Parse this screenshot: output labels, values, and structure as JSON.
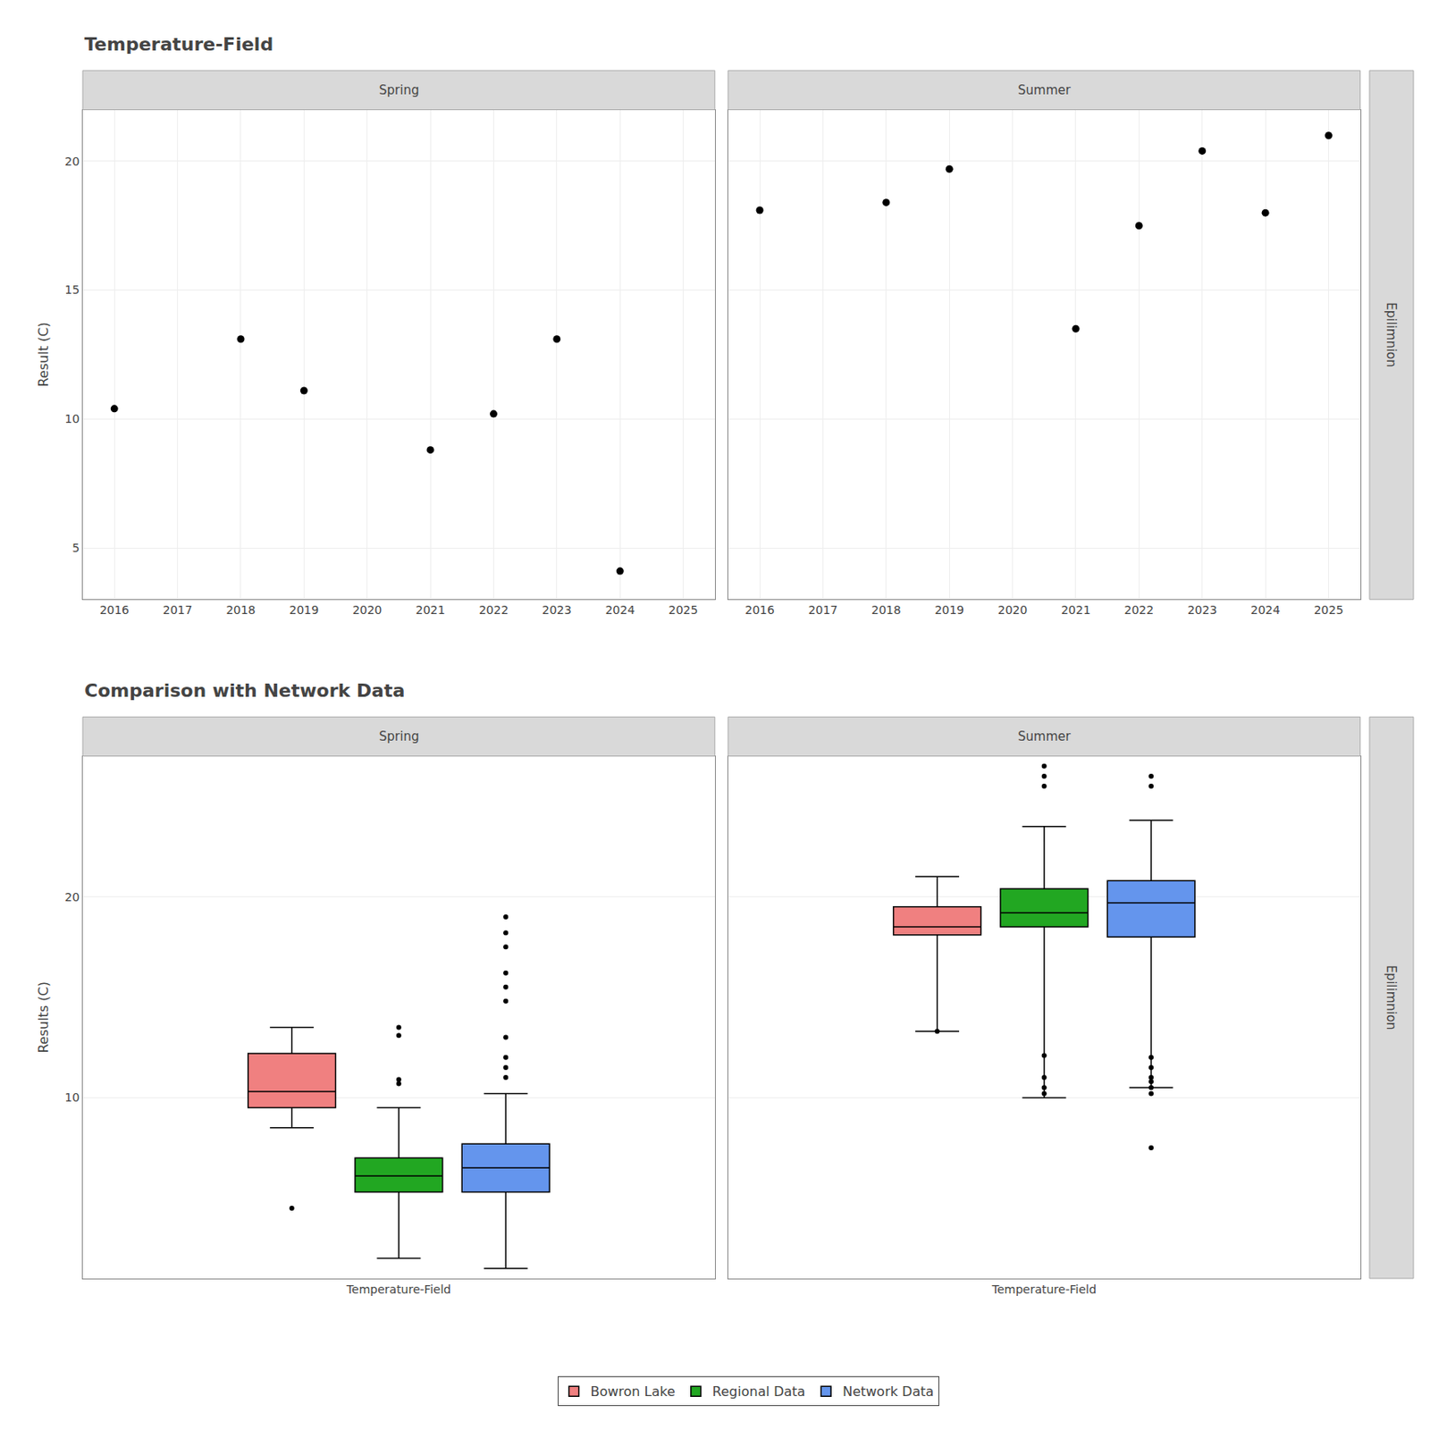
{
  "chart_data": [
    {
      "type": "scatter",
      "title": "Temperature-Field",
      "ylabel": "Result (C)",
      "annotations": [
        "Epilimnion"
      ],
      "color": "#000000",
      "panels": [
        {
          "name": "Spring",
          "x": [
            2016,
            2018,
            2019,
            2021,
            2022,
            2023,
            2024
          ],
          "values": [
            10.4,
            13.1,
            11.1,
            8.8,
            10.2,
            13.1,
            4.1
          ]
        },
        {
          "name": "Summer",
          "x": [
            2016,
            2018,
            2019,
            2021,
            2022,
            2023,
            2024,
            2025
          ],
          "values": [
            18.1,
            18.4,
            19.7,
            13.5,
            17.5,
            20.4,
            18.0,
            21.0
          ]
        }
      ],
      "xlim": [
        2015.5,
        2025.5
      ],
      "xticks": [
        2016,
        2017,
        2018,
        2019,
        2020,
        2021,
        2022,
        2023,
        2024,
        2025
      ],
      "ylim": [
        3.0,
        22.0
      ],
      "yticks": [
        5,
        10,
        15,
        20
      ],
      "grid": true
    },
    {
      "type": "box",
      "title": "Comparison with Network Data",
      "ylabel": "Results (C)",
      "categories": [
        "Temperature-Field"
      ],
      "annotations": [
        "Epilimnion"
      ],
      "color": "#000000",
      "panels": [
        {
          "name": "Spring",
          "series": [
            {
              "name": "Bowron Lake",
              "color": "#F08080",
              "q1": 9.5,
              "median": 10.3,
              "q3": 12.2,
              "whisker_low": 8.5,
              "whisker_high": 13.5,
              "outliers": [
                4.5
              ]
            },
            {
              "name": "Regional Data",
              "color": "#22A722",
              "q1": 5.3,
              "median": 6.1,
              "q3": 7.0,
              "whisker_low": 2.0,
              "whisker_high": 9.5,
              "outliers": [
                10.7,
                10.9,
                13.1,
                13.5
              ]
            },
            {
              "name": "Network Data",
              "color": "#6495ED",
              "q1": 5.3,
              "median": 6.5,
              "q3": 7.7,
              "whisker_low": 1.5,
              "whisker_high": 10.2,
              "outliers": [
                11.0,
                11.5,
                12.0,
                13.0,
                14.8,
                15.5,
                16.2,
                17.5,
                18.2,
                19.0
              ]
            }
          ]
        },
        {
          "name": "Summer",
          "series": [
            {
              "name": "Bowron Lake",
              "color": "#F08080",
              "q1": 18.1,
              "median": 18.5,
              "q3": 19.5,
              "whisker_low": 13.3,
              "whisker_high": 21.0,
              "outliers": [
                13.3
              ]
            },
            {
              "name": "Regional Data",
              "color": "#22A722",
              "q1": 18.5,
              "median": 19.2,
              "q3": 20.4,
              "whisker_low": 10.0,
              "whisker_high": 23.5,
              "outliers": [
                10.2,
                10.5,
                11.0,
                12.1,
                25.5,
                26.0,
                26.5
              ]
            },
            {
              "name": "Network Data",
              "color": "#6495ED",
              "q1": 18.0,
              "median": 19.7,
              "q3": 20.8,
              "whisker_low": 10.5,
              "whisker_high": 23.8,
              "outliers": [
                7.5,
                10.2,
                10.5,
                10.8,
                11.0,
                11.5,
                12.0,
                25.5,
                26.0
              ]
            }
          ]
        }
      ],
      "ylim": [
        1.0,
        27.0
      ],
      "yticks": [
        10,
        20
      ],
      "grid": "y",
      "legend": "bottom"
    }
  ]
}
